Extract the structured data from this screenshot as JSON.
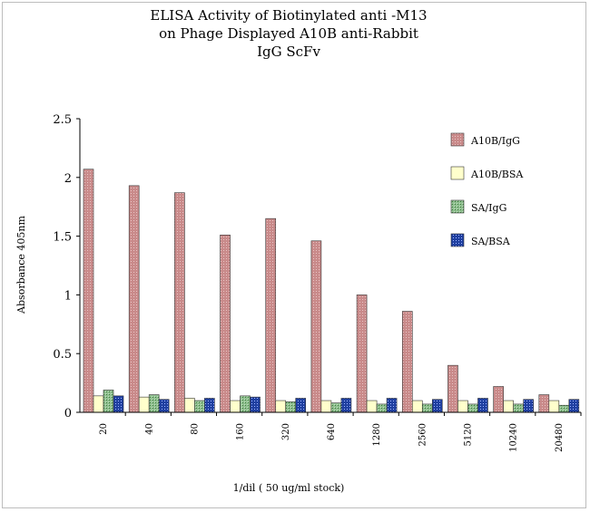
{
  "chart_data": {
    "type": "bar",
    "title": [
      "ELISA Activity of Biotinylated anti -M13",
      "on Phage Displayed A10B anti-Rabbit",
      "IgG ScFv"
    ],
    "xlabel": "1/dil ( 50 ug/ml stock)",
    "ylabel": "Absorbance 405nm",
    "ylim": [
      0,
      2.5
    ],
    "yticks": [
      "0",
      "0.5",
      "1",
      "1.5",
      "2",
      "2.5"
    ],
    "yticks_values": [
      0,
      0.5,
      1,
      1.5,
      2,
      2.5
    ],
    "grid": false,
    "legend_position": "right",
    "categories": [
      "20",
      "40",
      "80",
      "160",
      "320",
      "640",
      "1280",
      "2560",
      "5120",
      "10240",
      "20480"
    ],
    "series": [
      {
        "name": "A10B/IgG",
        "color": "#c98a8a",
        "values": [
          2.07,
          1.93,
          1.87,
          1.51,
          1.65,
          1.46,
          1.0,
          0.86,
          0.4,
          0.22,
          0.15
        ]
      },
      {
        "name": "A10B/BSA",
        "color": "#ffffcc",
        "values": [
          0.14,
          0.13,
          0.12,
          0.1,
          0.1,
          0.1,
          0.1,
          0.1,
          0.1,
          0.1,
          0.1
        ]
      },
      {
        "name": "SA/IgG",
        "color": "#8fbf8f",
        "values": [
          0.19,
          0.15,
          0.1,
          0.14,
          0.09,
          0.08,
          0.07,
          0.07,
          0.07,
          0.07,
          0.06
        ]
      },
      {
        "name": "SA/BSA",
        "color": "#1f3fa0",
        "values": [
          0.14,
          0.11,
          0.12,
          0.13,
          0.12,
          0.12,
          0.12,
          0.11,
          0.12,
          0.11,
          0.11
        ]
      }
    ]
  }
}
